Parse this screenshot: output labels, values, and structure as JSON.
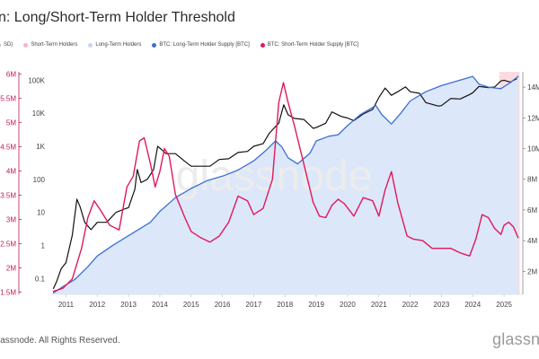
{
  "title": "n: Long/Short-Term Holder Threshold",
  "legend": [
    {
      "label": "SD)",
      "color": "#bdbdbd"
    },
    {
      "label": "Short-Term Holders",
      "color": "#f4b6c2"
    },
    {
      "label": "Long-Term Holders",
      "color": "#c6d3f0"
    },
    {
      "label": "BTC: Long-Term Holder Supply [BTC]",
      "color": "#3a6fd6"
    },
    {
      "label": "BTC: Short-Term Holder Supply [BTC]",
      "color": "#e0195a"
    }
  ],
  "footer": "lassnode. All Rights Reserved.",
  "brand": "glassn",
  "watermark": "glassnode",
  "colors": {
    "price": "#111111",
    "lth": "#3a6fd6",
    "sth": "#e0195a",
    "lth_fill": "#dce7fa",
    "sth_band": "#f9d5da",
    "axis_left": "#c2185b",
    "axis_text": "#444444"
  },
  "chart_data": {
    "type": "line",
    "title": "n: Long/Short-Term Holder Threshold",
    "x_axis": {
      "ticks": [
        "2011",
        "2012",
        "2013",
        "2014",
        "2015",
        "2016",
        "2017",
        "2018",
        "2019",
        "2020",
        "2021",
        "2022",
        "2023",
        "2024",
        "2025"
      ],
      "range": [
        2010.5,
        2025.6
      ]
    },
    "left_axis": {
      "ticks": [
        "6M",
        "5.5M",
        "5M",
        "4.5M",
        "4M",
        "3.5M",
        "3M",
        "2.5M",
        "2M",
        "1.5M"
      ],
      "range": [
        1450000,
        6050000
      ]
    },
    "price_axis": {
      "scale": "log",
      "ticks": [
        "100K",
        "10K",
        "1K",
        "100",
        "10",
        "1",
        "0.1"
      ],
      "range": [
        0.033,
        180000
      ]
    },
    "right_axis": {
      "ticks": [
        "14M",
        "12M",
        "10M",
        "8M",
        "6M",
        "4M",
        "2M"
      ],
      "range": [
        500000,
        15000000
      ]
    },
    "sth_band": [
      2024.85,
      2025.5
    ],
    "series": [
      {
        "name": "Price (USD)",
        "axis": "price",
        "x": [
          2010.6,
          2010.7,
          2010.85,
          2011.0,
          2011.2,
          2011.35,
          2011.45,
          2011.6,
          2011.8,
          2012.0,
          2012.3,
          2012.6,
          2012.9,
          2013.0,
          2013.2,
          2013.28,
          2013.4,
          2013.6,
          2013.8,
          2013.93,
          2014.05,
          2014.2,
          2014.5,
          2014.8,
          2015.0,
          2015.3,
          2015.6,
          2015.9,
          2016.2,
          2016.5,
          2016.8,
          2017.0,
          2017.3,
          2017.5,
          2017.8,
          2017.96,
          2018.1,
          2018.3,
          2018.6,
          2018.9,
          2019.0,
          2019.3,
          2019.5,
          2019.8,
          2020.0,
          2020.2,
          2020.5,
          2020.8,
          2021.0,
          2021.2,
          2021.4,
          2021.6,
          2021.85,
          2022.0,
          2022.3,
          2022.5,
          2022.9,
          2023.0,
          2023.3,
          2023.6,
          2023.9,
          2024.0,
          2024.2,
          2024.5,
          2024.7,
          2024.9,
          2025.0,
          2025.2,
          2025.4
        ],
        "values": [
          0.05,
          0.08,
          0.2,
          0.3,
          2,
          25,
          15,
          5,
          3,
          5,
          5,
          10,
          13,
          14,
          50,
          200,
          80,
          100,
          200,
          1000,
          800,
          600,
          600,
          350,
          250,
          250,
          250,
          400,
          420,
          650,
          700,
          1000,
          1200,
          2500,
          5000,
          18000,
          9000,
          7000,
          6500,
          3500,
          3700,
          5000,
          11000,
          8000,
          7200,
          6000,
          9500,
          13000,
          30000,
          58000,
          35000,
          45000,
          63000,
          45000,
          40000,
          21000,
          16500,
          17000,
          28000,
          27000,
          37000,
          42000,
          65000,
          60000,
          62000,
          95000,
          100000,
          88000,
          110000
        ]
      },
      {
        "name": "BTC: Long-Term Holder Supply [BTC]",
        "axis": "right",
        "x": [
          2010.6,
          2010.9,
          2011.3,
          2011.7,
          2012.0,
          2012.5,
          2012.9,
          2013.3,
          2013.7,
          2014.0,
          2014.5,
          2015.0,
          2015.5,
          2016.0,
          2016.5,
          2017.0,
          2017.4,
          2017.7,
          2017.9,
          2018.1,
          2018.4,
          2018.8,
          2019.0,
          2019.4,
          2019.7,
          2020.0,
          2020.4,
          2020.9,
          2021.1,
          2021.4,
          2021.7,
          2022.0,
          2022.5,
          2023.0,
          2023.5,
          2024.0,
          2024.2,
          2024.5,
          2024.9,
          2025.2,
          2025.45
        ],
        "values": [
          600000,
          1000000,
          1500000,
          2300000,
          3000000,
          3700000,
          4200000,
          4700000,
          5200000,
          5900000,
          6800000,
          7400000,
          7900000,
          8200000,
          8600000,
          9200000,
          9900000,
          10500000,
          10100000,
          9400000,
          9000000,
          9700000,
          10500000,
          10800000,
          10900000,
          11500000,
          12200000,
          12800000,
          12200000,
          11600000,
          12300000,
          13100000,
          13700000,
          14100000,
          14400000,
          14700000,
          14200000,
          14000000,
          13900000,
          14300000,
          14700000
        ]
      },
      {
        "name": "BTC: Short-Term Holder Supply [BTC]",
        "axis": "right",
        "x": [
          2010.6,
          2010.9,
          2011.2,
          2011.5,
          2011.7,
          2011.9,
          2012.1,
          2012.4,
          2012.7,
          2012.95,
          2013.15,
          2013.35,
          2013.5,
          2013.7,
          2013.85,
          2014.0,
          2014.15,
          2014.3,
          2014.5,
          2014.8,
          2015.0,
          2015.3,
          2015.6,
          2015.9,
          2016.2,
          2016.5,
          2016.8,
          2017.0,
          2017.3,
          2017.6,
          2017.8,
          2017.95,
          2018.1,
          2018.3,
          2018.6,
          2018.9,
          2019.1,
          2019.3,
          2019.5,
          2019.7,
          2019.9,
          2020.2,
          2020.5,
          2020.8,
          2021.0,
          2021.2,
          2021.4,
          2021.6,
          2021.9,
          2022.1,
          2022.4,
          2022.7,
          2023.0,
          2023.3,
          2023.6,
          2023.9,
          2024.1,
          2024.3,
          2024.5,
          2024.7,
          2024.9,
          2025.0,
          2025.15,
          2025.3,
          2025.45
        ],
        "values": [
          700000,
          900000,
          1500000,
          3500000,
          5500000,
          6600000,
          6000000,
          5000000,
          4700000,
          7500000,
          8200000,
          10500000,
          10700000,
          9000000,
          7500000,
          8500000,
          10000000,
          9500000,
          7000000,
          5500000,
          4600000,
          4200000,
          3900000,
          4300000,
          5200000,
          6900000,
          6600000,
          5700000,
          6100000,
          8000000,
          13000000,
          14300000,
          13000000,
          11500000,
          9000000,
          6500000,
          5600000,
          5500000,
          6300000,
          6700000,
          6400000,
          5600000,
          6800000,
          6600000,
          5600000,
          7300000,
          8500000,
          6500000,
          4300000,
          4100000,
          4000000,
          3500000,
          3500000,
          3500000,
          3200000,
          3000000,
          4100000,
          5700000,
          5500000,
          4800000,
          4400000,
          5000000,
          5200000,
          4900000,
          4200000
        ]
      }
    ]
  }
}
